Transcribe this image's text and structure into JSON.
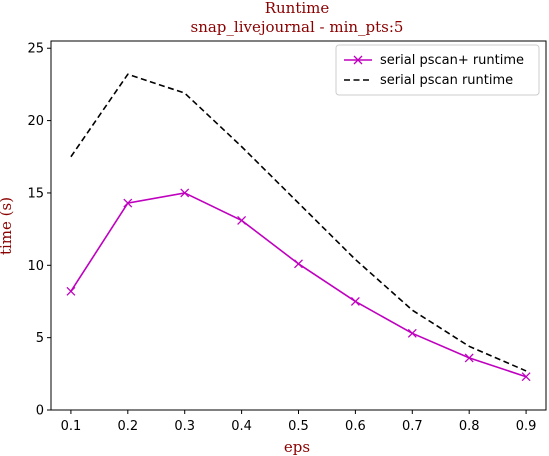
{
  "chart_data": {
    "type": "line",
    "title": "Runtime",
    "subtitle": "snap_livejournal - min_pts:5",
    "xlabel": "eps",
    "ylabel": "time (s)",
    "x": [
      0.1,
      0.2,
      0.3,
      0.4,
      0.5,
      0.6,
      0.7,
      0.8,
      0.9
    ],
    "x_tick_labels": [
      "0.1",
      "0.2",
      "0.3",
      "0.4",
      "0.5",
      "0.6",
      "0.7",
      "0.8",
      "0.9"
    ],
    "y_ticks": [
      0,
      5,
      10,
      15,
      20,
      25
    ],
    "y_tick_labels": [
      "0",
      "5",
      "10",
      "15",
      "20",
      "25"
    ],
    "xlim": [
      0.065,
      0.935
    ],
    "ylim": [
      0,
      25.5
    ],
    "grid": false,
    "legend_position": "top-right",
    "series": [
      {
        "name": "serial pscan+ runtime",
        "color": "#bf00bf",
        "line_style": "solid",
        "marker": "x",
        "values": [
          8.2,
          14.3,
          15.0,
          13.1,
          10.1,
          7.5,
          5.3,
          3.6,
          2.3
        ]
      },
      {
        "name": "serial pscan runtime",
        "color": "#000000",
        "line_style": "dashed",
        "marker": "none",
        "values": [
          17.5,
          23.2,
          21.9,
          18.2,
          14.3,
          10.4,
          6.9,
          4.4,
          2.7
        ]
      }
    ]
  }
}
